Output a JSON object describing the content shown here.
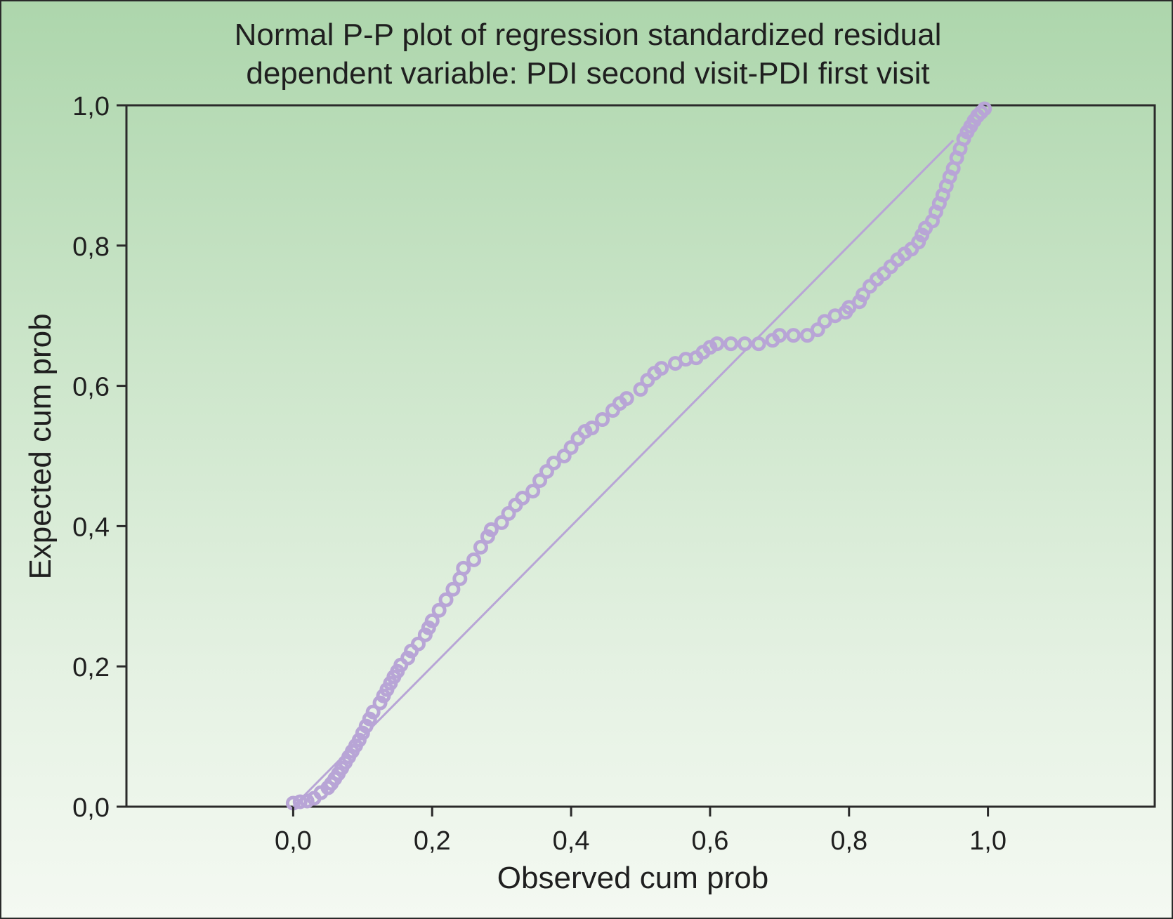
{
  "title_line1": "Normal P-P plot of regression standardized residual",
  "title_line2": "dependent variable: PDI second visit-PDI first visit",
  "chart_data": {
    "type": "scatter",
    "title": "Normal P-P plot of regression standardized residual dependent variable: PDI second visit-PDI first visit",
    "xlabel": "Observed cum prob",
    "ylabel": "Expected cum prob",
    "xlim": [
      -0.24,
      1.24
    ],
    "ylim": [
      0,
      1
    ],
    "xticks": [
      "0,0",
      "0,2",
      "0,4",
      "0,6",
      "0,8",
      "1,0"
    ],
    "xtick_values": [
      0,
      0.2,
      0.4,
      0.6,
      0.8,
      1.0
    ],
    "yticks": [
      "0,0",
      "0,2",
      "0,4",
      "0,6",
      "0,8",
      "1,0"
    ],
    "ytick_values": [
      0,
      0.2,
      0.4,
      0.6,
      0.8,
      1.0
    ],
    "grid": false,
    "reference_line": [
      [
        0.0,
        0.0
      ],
      [
        0.95,
        0.95
      ]
    ],
    "colors": {
      "points": "#b8a5d6",
      "line": "#b8a5d6",
      "axes": "#2a2a2a",
      "text": "#1f1f1f"
    },
    "points": [
      [
        0.0,
        0.005
      ],
      [
        0.01,
        0.007
      ],
      [
        0.02,
        0.008
      ],
      [
        0.03,
        0.012
      ],
      [
        0.04,
        0.02
      ],
      [
        0.05,
        0.027
      ],
      [
        0.055,
        0.033
      ],
      [
        0.06,
        0.04
      ],
      [
        0.065,
        0.047
      ],
      [
        0.07,
        0.055
      ],
      [
        0.075,
        0.063
      ],
      [
        0.08,
        0.071
      ],
      [
        0.085,
        0.079
      ],
      [
        0.09,
        0.087
      ],
      [
        0.095,
        0.095
      ],
      [
        0.1,
        0.105
      ],
      [
        0.105,
        0.115
      ],
      [
        0.11,
        0.125
      ],
      [
        0.115,
        0.135
      ],
      [
        0.125,
        0.148
      ],
      [
        0.13,
        0.158
      ],
      [
        0.135,
        0.167
      ],
      [
        0.14,
        0.176
      ],
      [
        0.145,
        0.185
      ],
      [
        0.15,
        0.193
      ],
      [
        0.155,
        0.202
      ],
      [
        0.165,
        0.212
      ],
      [
        0.17,
        0.222
      ],
      [
        0.18,
        0.232
      ],
      [
        0.19,
        0.245
      ],
      [
        0.195,
        0.255
      ],
      [
        0.2,
        0.265
      ],
      [
        0.21,
        0.28
      ],
      [
        0.22,
        0.295
      ],
      [
        0.23,
        0.31
      ],
      [
        0.24,
        0.325
      ],
      [
        0.245,
        0.34
      ],
      [
        0.26,
        0.352
      ],
      [
        0.27,
        0.37
      ],
      [
        0.28,
        0.385
      ],
      [
        0.285,
        0.395
      ],
      [
        0.3,
        0.405
      ],
      [
        0.31,
        0.418
      ],
      [
        0.32,
        0.43
      ],
      [
        0.33,
        0.44
      ],
      [
        0.345,
        0.45
      ],
      [
        0.355,
        0.465
      ],
      [
        0.365,
        0.478
      ],
      [
        0.375,
        0.49
      ],
      [
        0.39,
        0.5
      ],
      [
        0.4,
        0.512
      ],
      [
        0.41,
        0.525
      ],
      [
        0.42,
        0.535
      ],
      [
        0.43,
        0.54
      ],
      [
        0.445,
        0.552
      ],
      [
        0.46,
        0.565
      ],
      [
        0.47,
        0.575
      ],
      [
        0.48,
        0.582
      ],
      [
        0.5,
        0.595
      ],
      [
        0.51,
        0.608
      ],
      [
        0.52,
        0.618
      ],
      [
        0.53,
        0.625
      ],
      [
        0.55,
        0.632
      ],
      [
        0.565,
        0.638
      ],
      [
        0.58,
        0.64
      ],
      [
        0.59,
        0.648
      ],
      [
        0.6,
        0.655
      ],
      [
        0.61,
        0.66
      ],
      [
        0.63,
        0.66
      ],
      [
        0.65,
        0.66
      ],
      [
        0.67,
        0.66
      ],
      [
        0.69,
        0.665
      ],
      [
        0.7,
        0.672
      ],
      [
        0.72,
        0.672
      ],
      [
        0.74,
        0.672
      ],
      [
        0.755,
        0.68
      ],
      [
        0.765,
        0.692
      ],
      [
        0.78,
        0.7
      ],
      [
        0.795,
        0.705
      ],
      [
        0.8,
        0.712
      ],
      [
        0.815,
        0.72
      ],
      [
        0.82,
        0.73
      ],
      [
        0.83,
        0.742
      ],
      [
        0.84,
        0.752
      ],
      [
        0.85,
        0.76
      ],
      [
        0.86,
        0.77
      ],
      [
        0.87,
        0.78
      ],
      [
        0.88,
        0.788
      ],
      [
        0.89,
        0.795
      ],
      [
        0.9,
        0.805
      ],
      [
        0.905,
        0.815
      ],
      [
        0.91,
        0.825
      ],
      [
        0.92,
        0.835
      ],
      [
        0.925,
        0.848
      ],
      [
        0.93,
        0.86
      ],
      [
        0.935,
        0.872
      ],
      [
        0.94,
        0.885
      ],
      [
        0.945,
        0.898
      ],
      [
        0.95,
        0.91
      ],
      [
        0.955,
        0.925
      ],
      [
        0.96,
        0.938
      ],
      [
        0.965,
        0.952
      ],
      [
        0.97,
        0.962
      ],
      [
        0.975,
        0.97
      ],
      [
        0.98,
        0.978
      ],
      [
        0.985,
        0.985
      ],
      [
        0.99,
        0.99
      ],
      [
        0.995,
        0.995
      ]
    ]
  }
}
